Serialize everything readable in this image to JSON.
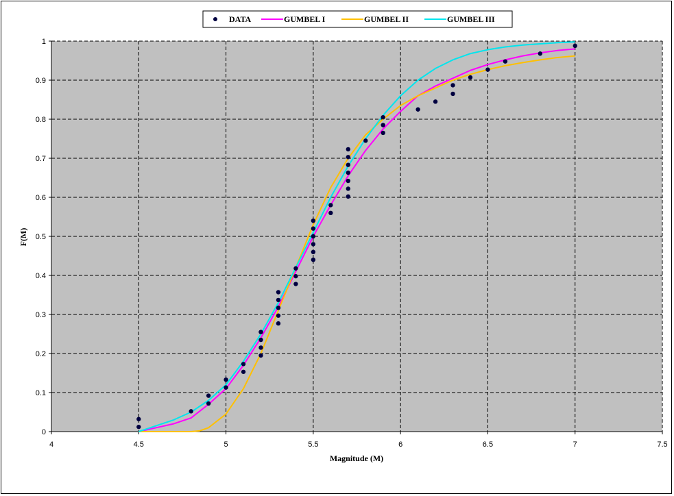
{
  "chart_data": {
    "type": "line",
    "xlabel": "Magnitude (M)",
    "ylabel": "F(M)",
    "xlim": [
      4,
      7.5
    ],
    "ylim": [
      0,
      1
    ],
    "xticks": [
      "4",
      "4.5",
      "5",
      "5.5",
      "6",
      "6.5",
      "7",
      "7.5"
    ],
    "yticks": [
      "0",
      "0.1",
      "0.2",
      "0.3",
      "0.4",
      "0.5",
      "0.6",
      "0.7",
      "0.8",
      "0.9",
      "1"
    ],
    "grid": true,
    "legend_position": "top",
    "colors": {
      "plot_background": "#c0c0c0",
      "data": "#000040",
      "gumbel1": "#ff00ff",
      "gumbel2": "#ffc000",
      "gumbel3": "#00e5ee"
    },
    "data_points": {
      "name": "DATA",
      "x": [
        4.5,
        4.5,
        4.8,
        4.9,
        4.9,
        5.0,
        5.0,
        5.1,
        5.1,
        5.2,
        5.2,
        5.2,
        5.2,
        5.2,
        5.3,
        5.3,
        5.3,
        5.3,
        5.3,
        5.4,
        5.4,
        5.4,
        5.5,
        5.5,
        5.5,
        5.5,
        5.5,
        5.5,
        5.6,
        5.6,
        5.7,
        5.7,
        5.7,
        5.7,
        5.7,
        5.7,
        5.7,
        5.8,
        5.9,
        5.9,
        5.9,
        6.1,
        6.2,
        6.3,
        6.3,
        6.4,
        6.5,
        6.6,
        6.8,
        7.0
      ],
      "y": [
        0.012,
        0.032,
        0.052,
        0.072,
        0.092,
        0.113,
        0.133,
        0.153,
        0.173,
        0.195,
        0.215,
        0.235,
        0.255,
        0.255,
        0.277,
        0.297,
        0.317,
        0.337,
        0.357,
        0.378,
        0.398,
        0.418,
        0.44,
        0.46,
        0.48,
        0.5,
        0.52,
        0.54,
        0.56,
        0.58,
        0.602,
        0.622,
        0.642,
        0.663,
        0.683,
        0.703,
        0.723,
        0.745,
        0.765,
        0.785,
        0.805,
        0.825,
        0.845,
        0.865,
        0.887,
        0.907,
        0.927,
        0.948,
        0.968,
        0.988
      ]
    },
    "series": [
      {
        "name": "GUMBEL I",
        "x": [
          4.5,
          4.6,
          4.7,
          4.8,
          4.9,
          5.0,
          5.1,
          5.2,
          5.3,
          5.4,
          5.5,
          5.6,
          5.7,
          5.8,
          5.9,
          6.0,
          6.1,
          6.2,
          6.3,
          6.4,
          6.5,
          6.6,
          6.7,
          6.8,
          6.9,
          7.0
        ],
        "values": [
          0.0,
          0.01,
          0.02,
          0.035,
          0.07,
          0.11,
          0.17,
          0.24,
          0.32,
          0.41,
          0.5,
          0.58,
          0.655,
          0.72,
          0.775,
          0.82,
          0.86,
          0.885,
          0.905,
          0.925,
          0.94,
          0.952,
          0.962,
          0.97,
          0.976,
          0.98
        ]
      },
      {
        "name": "GUMBEL II",
        "x": [
          4.5,
          4.6,
          4.7,
          4.8,
          4.85,
          4.9,
          5.0,
          5.1,
          5.2,
          5.3,
          5.4,
          5.5,
          5.6,
          5.7,
          5.8,
          5.9,
          6.0,
          6.1,
          6.2,
          6.3,
          6.4,
          6.5,
          6.6,
          6.7,
          6.8,
          6.9,
          7.0
        ],
        "values": [
          0.0,
          0.0,
          0.0,
          0.0,
          0.002,
          0.01,
          0.045,
          0.11,
          0.2,
          0.31,
          0.42,
          0.53,
          0.625,
          0.7,
          0.76,
          0.8,
          0.835,
          0.86,
          0.88,
          0.9,
          0.915,
          0.927,
          0.937,
          0.945,
          0.952,
          0.958,
          0.962
        ]
      },
      {
        "name": "GUMBEL III",
        "x": [
          4.5,
          4.6,
          4.7,
          4.8,
          4.9,
          5.0,
          5.1,
          5.2,
          5.3,
          5.4,
          5.5,
          5.6,
          5.7,
          5.8,
          5.9,
          6.0,
          6.1,
          6.2,
          6.3,
          6.4,
          6.5,
          6.6,
          6.7,
          6.8,
          6.9,
          7.0
        ],
        "values": [
          0.0,
          0.015,
          0.03,
          0.05,
          0.08,
          0.12,
          0.18,
          0.25,
          0.33,
          0.42,
          0.51,
          0.6,
          0.68,
          0.75,
          0.81,
          0.86,
          0.9,
          0.93,
          0.952,
          0.968,
          0.978,
          0.985,
          0.99,
          0.993,
          0.996,
          0.998
        ]
      }
    ]
  }
}
